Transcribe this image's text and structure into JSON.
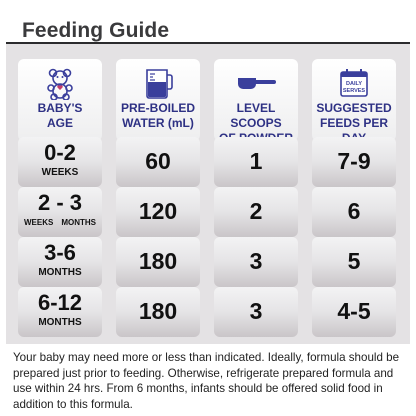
{
  "title": "Feeding Guide",
  "headers": {
    "age": "BABY'S\nAGE",
    "water": "PRE-BOILED\nWATER (mL)",
    "scoops": "LEVEL SCOOPS\nOF POWDER",
    "feeds": "SUGGESTED\nFEEDS PER DAY",
    "calendar_text": "DAILY\nSERVES"
  },
  "rows": [
    {
      "age": "0-2",
      "unit": "WEEKS",
      "water": "60",
      "scoops": "1",
      "feeds": "7-9"
    },
    {
      "age": "2 - 3",
      "unit_left": "WEEKS",
      "unit_right": "MONTHS",
      "water": "120",
      "scoops": "2",
      "feeds": "6"
    },
    {
      "age": "3-6",
      "unit": "MONTHS",
      "water": "180",
      "scoops": "3",
      "feeds": "5"
    },
    {
      "age": "6-12",
      "unit": "MONTHS",
      "water": "180",
      "scoops": "3",
      "feeds": "4-5"
    }
  ],
  "footnote": "Your baby may need more or less than indicated. Ideally, formula should be prepared just prior to feeding. Otherwise, refrigerate prepared formula and use within 24 hrs. From 6 months, infants should be offered solid food in addition to this formula.",
  "colors": {
    "heading_blue": "#2e3184",
    "icon_blue": "#3a3f9c",
    "title": "#3a3a3c"
  },
  "icons": [
    "teddy-bear-icon",
    "measuring-jug-icon",
    "scoop-icon",
    "calendar-icon"
  ]
}
